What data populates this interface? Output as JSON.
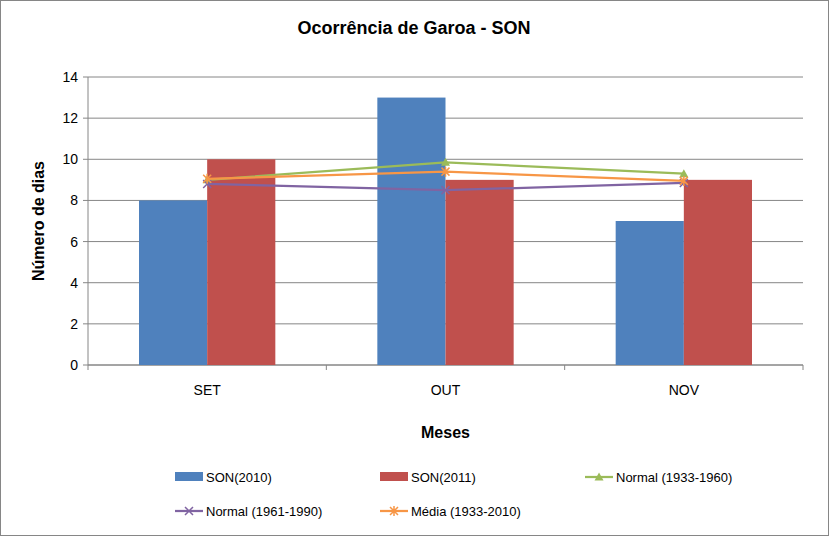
{
  "chart_data": {
    "type": "bar",
    "title": "Ocorrência de Garoa - SON",
    "x_label": "Meses",
    "y_label": "Número de dias",
    "categories": [
      "SET",
      "OUT",
      "NOV"
    ],
    "series": [
      {
        "name": "SON(2010)",
        "type": "bar",
        "color": "#4f81bd",
        "values": [
          8,
          13,
          7
        ]
      },
      {
        "name": "SON(2011)",
        "type": "bar",
        "color": "#c0504d",
        "values": [
          10,
          9,
          9
        ]
      },
      {
        "name": "Normal (1933-1960)",
        "type": "line",
        "color": "#9bbb59",
        "marker": "triangle",
        "values": [
          9.0,
          9.85,
          9.3
        ]
      },
      {
        "name": "Normal (1961-1990)",
        "type": "line",
        "color": "#8064a2",
        "marker": "x",
        "values": [
          8.8,
          8.5,
          8.85
        ]
      },
      {
        "name": "Média (1933-2010)",
        "type": "line",
        "color": "#f79646",
        "marker": "star",
        "values": [
          9.05,
          9.4,
          8.95
        ]
      }
    ],
    "ylim": [
      0,
      14
    ],
    "yticks": [
      0,
      2,
      4,
      6,
      8,
      10,
      12,
      14
    ],
    "grid": true,
    "legend": "bottom"
  }
}
